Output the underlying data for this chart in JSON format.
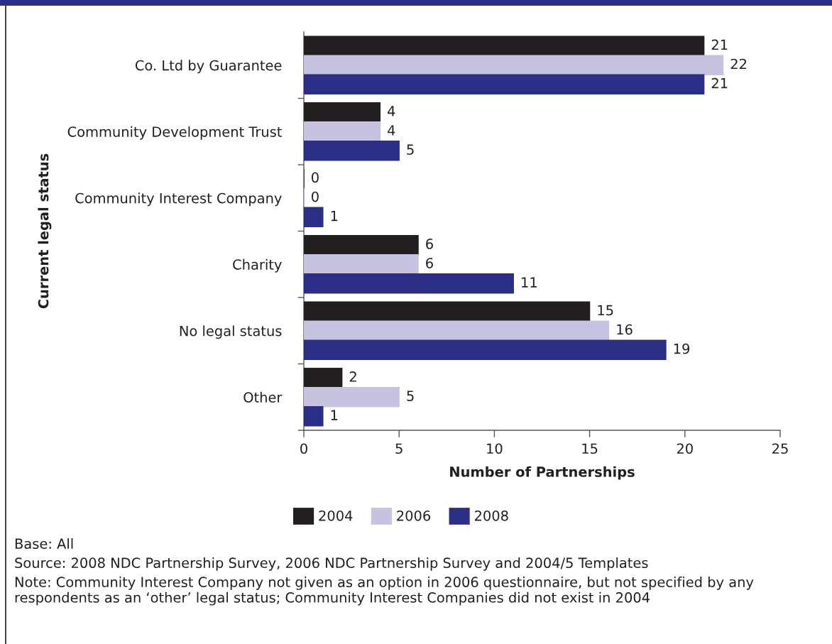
{
  "chart_data": {
    "type": "bar",
    "orientation": "horizontal",
    "categories": [
      "Co. Ltd by Guarantee",
      "Community Development Trust",
      "Community Interest Company",
      "Charity",
      "No legal status",
      "Other"
    ],
    "series": [
      {
        "name": "2004",
        "color": "#231f20",
        "values": [
          21,
          4,
          0,
          6,
          15,
          2
        ]
      },
      {
        "name": "2006",
        "color": "#c5c3df",
        "values": [
          22,
          4,
          0,
          6,
          16,
          5
        ]
      },
      {
        "name": "2008",
        "color": "#2a2e85",
        "values": [
          21,
          5,
          1,
          11,
          19,
          1
        ]
      }
    ],
    "xlim": [
      0,
      25
    ],
    "xticks": [
      0,
      5,
      10,
      15,
      20,
      25
    ],
    "xlabel": "Number of Partnerships",
    "ylabel": "Current legal status",
    "data_labels": true,
    "legend": "bottom",
    "annotations": [
      "Base: All",
      "Source: 2008 NDC Partnership Survey, 2006 NDC Partnership Survey and 2004/5 Templates",
      "Note: Community Interest Company not given as an option in 2006 questionnaire, but not specified by any respondents as an ‘other’ legal status; Community Interest Companies did not exist in 2004"
    ]
  }
}
